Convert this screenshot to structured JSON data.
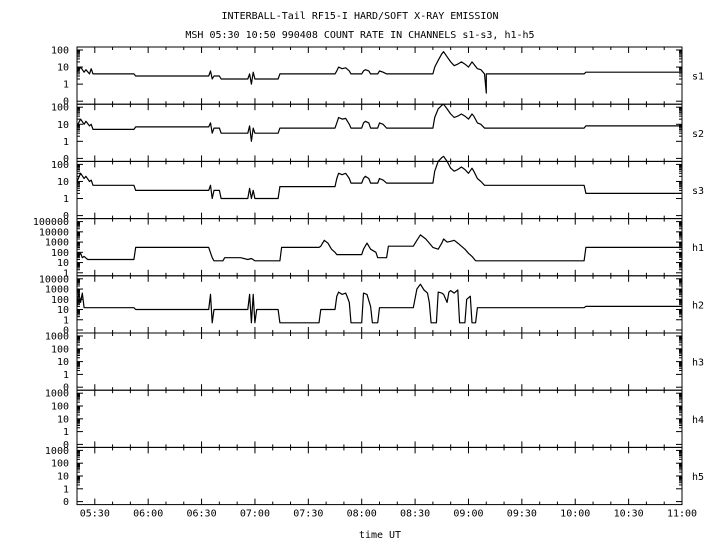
{
  "title": "INTERBALL-Tail RF15-I HARD/SOFT X-RAY EMISSION",
  "subtitle": "MSH 05:30 10:50 990408  COUNT RATE IN CHANNELS s1-s3, h1-h5",
  "colors": {
    "background": "#ffffff",
    "ink": "#000000"
  },
  "chart_data": {
    "type": "line",
    "xlabel": "time UT",
    "x_ticks": [
      "05:30",
      "06:00",
      "06:30",
      "07:00",
      "07:30",
      "08:00",
      "08:30",
      "09:00",
      "09:30",
      "10:00",
      "10:30",
      "11:00"
    ],
    "xlim": [
      "05:20",
      "11:00"
    ],
    "y_scale": "log",
    "grid": false,
    "series": [
      {
        "name": "s1",
        "y_ticks": [
          "100",
          "10",
          "1",
          "0"
        ],
        "data": [
          [
            "05:20",
            5
          ],
          [
            "05:22",
            10
          ],
          [
            "05:24",
            5
          ],
          [
            "05:25",
            7
          ],
          [
            "05:27",
            4
          ],
          [
            "05:28",
            8
          ],
          [
            "05:29",
            4
          ],
          [
            "05:52",
            4
          ],
          [
            "05:53",
            3
          ],
          [
            "06:34",
            3
          ],
          [
            "06:35",
            6
          ],
          [
            "06:36",
            2
          ],
          [
            "06:37",
            3
          ],
          [
            "06:40",
            3
          ],
          [
            "06:41",
            2
          ],
          [
            "06:56",
            2
          ],
          [
            "06:57",
            4
          ],
          [
            "06:58",
            1
          ],
          [
            "06:59",
            5
          ],
          [
            "07:00",
            2
          ],
          [
            "07:13",
            2
          ],
          [
            "07:14",
            4
          ],
          [
            "07:45",
            4
          ],
          [
            "07:46",
            6
          ],
          [
            "07:47",
            10
          ],
          [
            "07:49",
            8
          ],
          [
            "07:51",
            9
          ],
          [
            "07:53",
            6
          ],
          [
            "07:54",
            4
          ],
          [
            "08:00",
            4
          ],
          [
            "08:01",
            6
          ],
          [
            "08:02",
            7
          ],
          [
            "08:04",
            6
          ],
          [
            "08:05",
            4
          ],
          [
            "08:09",
            4
          ],
          [
            "08:10",
            6
          ],
          [
            "08:12",
            5
          ],
          [
            "08:14",
            4
          ],
          [
            "08:40",
            4
          ],
          [
            "08:41",
            10
          ],
          [
            "08:43",
            25
          ],
          [
            "08:45",
            60
          ],
          [
            "08:46",
            80
          ],
          [
            "08:48",
            40
          ],
          [
            "08:50",
            20
          ],
          [
            "08:52",
            12
          ],
          [
            "08:54",
            15
          ],
          [
            "08:56",
            20
          ],
          [
            "08:58",
            15
          ],
          [
            "09:00",
            10
          ],
          [
            "09:02",
            20
          ],
          [
            "09:03",
            15
          ],
          [
            "09:05",
            8
          ],
          [
            "09:07",
            7
          ],
          [
            "09:09",
            4
          ],
          [
            "09:10",
            0.3
          ],
          [
            "09:10",
            4
          ],
          [
            "10:05",
            4
          ],
          [
            "10:06",
            5
          ],
          [
            "11:00",
            5
          ]
        ]
      },
      {
        "name": "s2",
        "y_ticks": [
          "100",
          "10",
          "1",
          "0"
        ],
        "data": [
          [
            "05:20",
            8
          ],
          [
            "05:22",
            20
          ],
          [
            "05:24",
            10
          ],
          [
            "05:25",
            15
          ],
          [
            "05:27",
            8
          ],
          [
            "05:28",
            10
          ],
          [
            "05:29",
            5
          ],
          [
            "05:52",
            5
          ],
          [
            "05:53",
            7
          ],
          [
            "06:34",
            7
          ],
          [
            "06:35",
            12
          ],
          [
            "06:36",
            3
          ],
          [
            "06:37",
            6
          ],
          [
            "06:40",
            6
          ],
          [
            "06:41",
            3
          ],
          [
            "06:56",
            3
          ],
          [
            "06:57",
            8
          ],
          [
            "06:58",
            1
          ],
          [
            "06:59",
            6
          ],
          [
            "07:00",
            3
          ],
          [
            "07:13",
            3
          ],
          [
            "07:14",
            6
          ],
          [
            "07:45",
            6
          ],
          [
            "07:46",
            12
          ],
          [
            "07:47",
            25
          ],
          [
            "07:49",
            20
          ],
          [
            "07:51",
            22
          ],
          [
            "07:53",
            10
          ],
          [
            "07:54",
            6
          ],
          [
            "08:00",
            6
          ],
          [
            "08:01",
            12
          ],
          [
            "08:02",
            15
          ],
          [
            "08:04",
            12
          ],
          [
            "08:05",
            6
          ],
          [
            "08:09",
            6
          ],
          [
            "08:10",
            12
          ],
          [
            "08:12",
            10
          ],
          [
            "08:14",
            6
          ],
          [
            "08:40",
            6
          ],
          [
            "08:41",
            25
          ],
          [
            "08:43",
            80
          ],
          [
            "08:45",
            130
          ],
          [
            "08:46",
            150
          ],
          [
            "08:48",
            80
          ],
          [
            "08:50",
            40
          ],
          [
            "08:52",
            25
          ],
          [
            "08:54",
            30
          ],
          [
            "08:56",
            40
          ],
          [
            "08:58",
            30
          ],
          [
            "09:00",
            20
          ],
          [
            "09:02",
            40
          ],
          [
            "09:03",
            30
          ],
          [
            "09:05",
            12
          ],
          [
            "09:07",
            10
          ],
          [
            "09:09",
            6
          ],
          [
            "10:05",
            6
          ],
          [
            "10:06",
            8
          ],
          [
            "11:00",
            8
          ]
        ]
      },
      {
        "name": "s3",
        "y_ticks": [
          "100",
          "10",
          "1",
          "0"
        ],
        "data": [
          [
            "05:20",
            10
          ],
          [
            "05:22",
            30
          ],
          [
            "05:24",
            15
          ],
          [
            "05:25",
            20
          ],
          [
            "05:27",
            10
          ],
          [
            "05:28",
            12
          ],
          [
            "05:29",
            6
          ],
          [
            "05:52",
            6
          ],
          [
            "05:53",
            3
          ],
          [
            "06:34",
            3
          ],
          [
            "06:35",
            6
          ],
          [
            "06:36",
            1
          ],
          [
            "06:37",
            3
          ],
          [
            "06:40",
            3
          ],
          [
            "06:41",
            1
          ],
          [
            "06:56",
            1
          ],
          [
            "06:57",
            4
          ],
          [
            "06:58",
            1
          ],
          [
            "06:59",
            3
          ],
          [
            "07:00",
            1
          ],
          [
            "07:13",
            1
          ],
          [
            "07:14",
            5
          ],
          [
            "07:45",
            5
          ],
          [
            "07:46",
            15
          ],
          [
            "07:47",
            30
          ],
          [
            "07:49",
            25
          ],
          [
            "07:51",
            30
          ],
          [
            "07:53",
            15
          ],
          [
            "07:54",
            8
          ],
          [
            "08:00",
            8
          ],
          [
            "08:01",
            15
          ],
          [
            "08:02",
            20
          ],
          [
            "08:04",
            15
          ],
          [
            "08:05",
            8
          ],
          [
            "08:09",
            8
          ],
          [
            "08:10",
            15
          ],
          [
            "08:12",
            12
          ],
          [
            "08:14",
            8
          ],
          [
            "08:40",
            8
          ],
          [
            "08:41",
            40
          ],
          [
            "08:43",
            150
          ],
          [
            "08:45",
            250
          ],
          [
            "08:46",
            300
          ],
          [
            "08:48",
            150
          ],
          [
            "08:50",
            60
          ],
          [
            "08:52",
            40
          ],
          [
            "08:54",
            50
          ],
          [
            "08:56",
            70
          ],
          [
            "08:58",
            50
          ],
          [
            "09:00",
            30
          ],
          [
            "09:02",
            60
          ],
          [
            "09:03",
            40
          ],
          [
            "09:05",
            15
          ],
          [
            "09:07",
            10
          ],
          [
            "09:09",
            6
          ],
          [
            "10:05",
            6
          ],
          [
            "10:06",
            2
          ],
          [
            "11:00",
            2
          ]
        ]
      },
      {
        "name": "h1",
        "y_ticks": [
          "100000",
          "10000",
          "1000",
          "100",
          "10",
          "1"
        ],
        "data": [
          [
            "05:20",
            30
          ],
          [
            "05:22",
            80
          ],
          [
            "05:23",
            30
          ],
          [
            "05:24",
            40
          ],
          [
            "05:26",
            20
          ],
          [
            "05:52",
            20
          ],
          [
            "05:53",
            300
          ],
          [
            "06:34",
            300
          ],
          [
            "06:36",
            30
          ],
          [
            "06:37",
            15
          ],
          [
            "06:42",
            15
          ],
          [
            "06:43",
            30
          ],
          [
            "06:52",
            30
          ],
          [
            "06:56",
            20
          ],
          [
            "06:58",
            25
          ],
          [
            "07:00",
            15
          ],
          [
            "07:14",
            15
          ],
          [
            "07:15",
            300
          ],
          [
            "07:36",
            300
          ],
          [
            "07:37",
            400
          ],
          [
            "07:38",
            800
          ],
          [
            "07:39",
            1500
          ],
          [
            "07:41",
            800
          ],
          [
            "07:43",
            200
          ],
          [
            "07:45",
            100
          ],
          [
            "07:46",
            60
          ],
          [
            "08:00",
            60
          ],
          [
            "08:01",
            200
          ],
          [
            "08:03",
            800
          ],
          [
            "08:05",
            200
          ],
          [
            "08:08",
            100
          ],
          [
            "08:09",
            30
          ],
          [
            "08:14",
            30
          ],
          [
            "08:15",
            400
          ],
          [
            "08:29",
            400
          ],
          [
            "08:31",
            1500
          ],
          [
            "08:33",
            5000
          ],
          [
            "08:36",
            2000
          ],
          [
            "08:38",
            800
          ],
          [
            "08:40",
            300
          ],
          [
            "08:43",
            200
          ],
          [
            "08:45",
            800
          ],
          [
            "08:46",
            2000
          ],
          [
            "08:48",
            1000
          ],
          [
            "08:50",
            1200
          ],
          [
            "08:52",
            1500
          ],
          [
            "08:54",
            800
          ],
          [
            "08:56",
            400
          ],
          [
            "08:58",
            200
          ],
          [
            "09:00",
            80
          ],
          [
            "09:02",
            40
          ],
          [
            "09:04",
            15
          ],
          [
            "10:05",
            15
          ],
          [
            "10:06",
            300
          ],
          [
            "11:00",
            300
          ]
        ]
      },
      {
        "name": "h2",
        "y_ticks": [
          "10000",
          "1000",
          "100",
          "10",
          "1",
          "0"
        ],
        "data": [
          [
            "05:20",
            20
          ],
          [
            "05:21",
            400
          ],
          [
            "05:22",
            50
          ],
          [
            "05:23",
            400
          ],
          [
            "05:24",
            15
          ],
          [
            "05:52",
            15
          ],
          [
            "05:53",
            10
          ],
          [
            "06:34",
            10
          ],
          [
            "06:35",
            300
          ],
          [
            "06:36",
            0.5
          ],
          [
            "06:37",
            10
          ],
          [
            "06:56",
            10
          ],
          [
            "06:57",
            300
          ],
          [
            "06:58",
            0.5
          ],
          [
            "06:59",
            300
          ],
          [
            "07:00",
            0.5
          ],
          [
            "07:01",
            10
          ],
          [
            "07:13",
            10
          ],
          [
            "07:14",
            0.5
          ],
          [
            "07:36",
            0.5
          ],
          [
            "07:37",
            10
          ],
          [
            "07:45",
            10
          ],
          [
            "07:46",
            200
          ],
          [
            "07:47",
            500
          ],
          [
            "07:49",
            300
          ],
          [
            "07:51",
            400
          ],
          [
            "07:52",
            150
          ],
          [
            "07:53",
            50
          ],
          [
            "07:54",
            0.5
          ],
          [
            "08:00",
            0.5
          ],
          [
            "08:01",
            400
          ],
          [
            "08:03",
            300
          ],
          [
            "08:05",
            20
          ],
          [
            "08:06",
            0.5
          ],
          [
            "08:09",
            0.5
          ],
          [
            "08:10",
            15
          ],
          [
            "08:29",
            15
          ],
          [
            "08:31",
            1000
          ],
          [
            "08:33",
            3000
          ],
          [
            "08:35",
            800
          ],
          [
            "08:37",
            400
          ],
          [
            "08:38",
            50
          ],
          [
            "08:39",
            0.5
          ],
          [
            "08:42",
            0.5
          ],
          [
            "08:43",
            500
          ],
          [
            "08:45",
            400
          ],
          [
            "08:46",
            300
          ],
          [
            "08:48",
            50
          ],
          [
            "08:49",
            500
          ],
          [
            "08:50",
            700
          ],
          [
            "08:52",
            400
          ],
          [
            "08:54",
            800
          ],
          [
            "08:55",
            0.5
          ],
          [
            "08:58",
            0.5
          ],
          [
            "08:59",
            100
          ],
          [
            "09:01",
            200
          ],
          [
            "09:02",
            0.5
          ],
          [
            "09:04",
            0.5
          ],
          [
            "09:05",
            15
          ],
          [
            "10:05",
            15
          ],
          [
            "10:06",
            20
          ],
          [
            "11:00",
            20
          ]
        ]
      },
      {
        "name": "h3",
        "y_ticks": [
          "1000",
          "100",
          "10",
          "1",
          "0"
        ],
        "data": []
      },
      {
        "name": "h4",
        "y_ticks": [
          "1000",
          "100",
          "10",
          "1",
          "0"
        ],
        "data": []
      },
      {
        "name": "h5",
        "y_ticks": [
          "1000",
          "100",
          "10",
          "1",
          "0"
        ],
        "data": []
      }
    ]
  }
}
